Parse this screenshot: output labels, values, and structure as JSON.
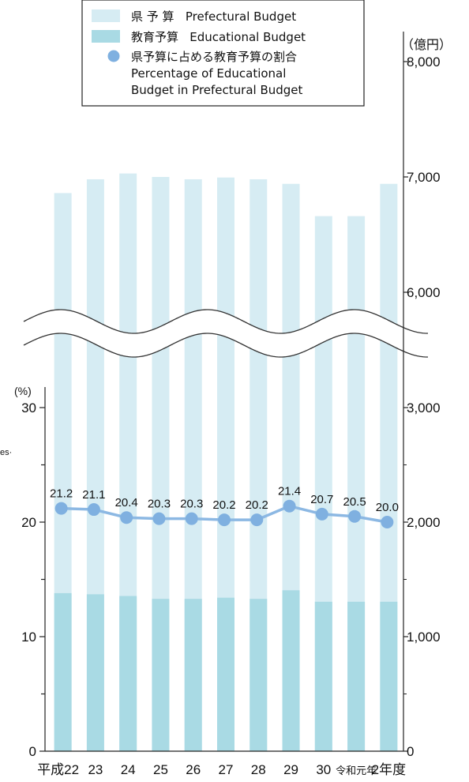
{
  "chart_data": {
    "type": "bar",
    "categories": [
      "平成22",
      "23",
      "24",
      "25",
      "26",
      "27",
      "28",
      "29",
      "30",
      "令和元年",
      "2年度"
    ],
    "series": [
      {
        "name": "県 予 算 Prefectural Budget",
        "values": [
          6860,
          6980,
          7030,
          7000,
          6980,
          6995,
          6980,
          6940,
          6660,
          6660,
          6940
        ]
      },
      {
        "name": "教育予算 Educational Budget",
        "values": [
          1380,
          1370,
          1355,
          1330,
          1330,
          1340,
          1330,
          1405,
          1305,
          1305,
          1305
        ]
      },
      {
        "name": "県予算に占める教育予算の割合 Percentage of Educational Budget in Prefectural Budget",
        "values": [
          21.2,
          21.1,
          20.4,
          20.3,
          20.3,
          20.2,
          20.2,
          21.4,
          20.7,
          20.5,
          20.0
        ],
        "labels": [
          "21.2",
          "21.1",
          "20.4",
          "20.3",
          "20.3",
          "20.2",
          "20.2",
          "21.4",
          "20.7",
          "20.5",
          "20.0"
        ]
      }
    ],
    "right_axis": {
      "unit": "（億円）",
      "ticks": [
        "0",
        "1,000",
        "2,000",
        "3,000",
        "6,000",
        "7,000",
        "8,000"
      ],
      "break": [
        3000,
        5500
      ],
      "ylim": [
        0,
        8000
      ]
    },
    "left_axis": {
      "unit": "(%)",
      "ticks": [
        "0",
        "10",
        "20",
        "30"
      ],
      "ylim": [
        0,
        30
      ]
    },
    "legend": {
      "items": [
        {
          "label": "県 予 算   Prefectural Budget",
          "color": "#d6ecf3",
          "marker": "square"
        },
        {
          "label": "教育予算   Educational Budget",
          "color": "#a9dae4",
          "marker": "square"
        },
        {
          "label": "県予算に占める教育予算の割合",
          "line2": "Percentage of Educational",
          "line3": "Budget in Prefectural Budget",
          "color": "#7fb0e0",
          "marker": "circle"
        }
      ],
      "placement": "top"
    },
    "margin_text": "es·",
    "colors": {
      "prefectural": "#d6ecf3",
      "educational": "#a9dae4",
      "line": "#8cb8e3",
      "marker": "#7fb0e0"
    }
  }
}
